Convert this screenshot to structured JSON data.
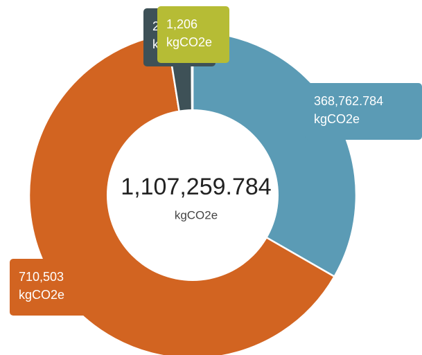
{
  "chart_data": {
    "type": "donut",
    "categories": [
      null,
      null,
      null,
      null
    ],
    "values": [
      368762.784,
      710503,
      26788,
      1206
    ],
    "value_labels": [
      "368,762.784",
      "710,503",
      "26,788",
      "1,206"
    ],
    "colors": [
      "#5b9bb5",
      "#d26421",
      "#3e5157",
      "#b6bc35"
    ],
    "unit": "kgCO2e",
    "total": 1107259.784,
    "total_label": "1,107,259.784"
  }
}
